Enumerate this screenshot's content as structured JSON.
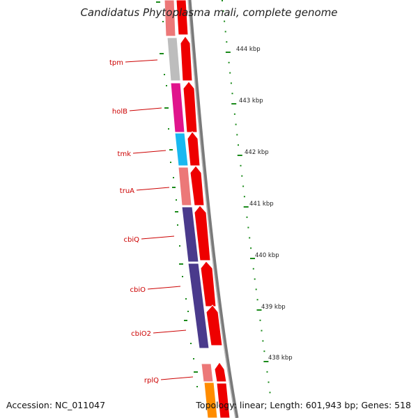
{
  "title": "Candidatus Phytoplasma mali, complete genome",
  "footer": {
    "accession": "Accession: NC_011047",
    "summary": "Topology: linear; Length: 601,943 bp; Genes: 518"
  },
  "colors": {
    "forward_strand": "#ee0000",
    "tick": "#1a8a1a",
    "label": "#cc0000",
    "backbone": "#7a7a7a"
  },
  "scale_labels": [
    "444 kbp",
    "443 kbp",
    "442 kbp",
    "441 kbp",
    "440 kbp",
    "439 kbp",
    "438 kbp"
  ],
  "genes": [
    {
      "name": "tpm",
      "color": "#bdbdbd"
    },
    {
      "name": "holB",
      "color": "#e0148c"
    },
    {
      "name": "tmk",
      "color": "#18b8f0"
    },
    {
      "name": "truA",
      "color": "#ec7878"
    },
    {
      "name": "cbiQ",
      "color": "#4a3a8c"
    },
    {
      "name": "cbiO",
      "color": "#4a3a8c"
    },
    {
      "name": "cbiO2",
      "color": "#4a3a8c"
    },
    {
      "name": "rplQ",
      "color": "#ec7878"
    }
  ]
}
